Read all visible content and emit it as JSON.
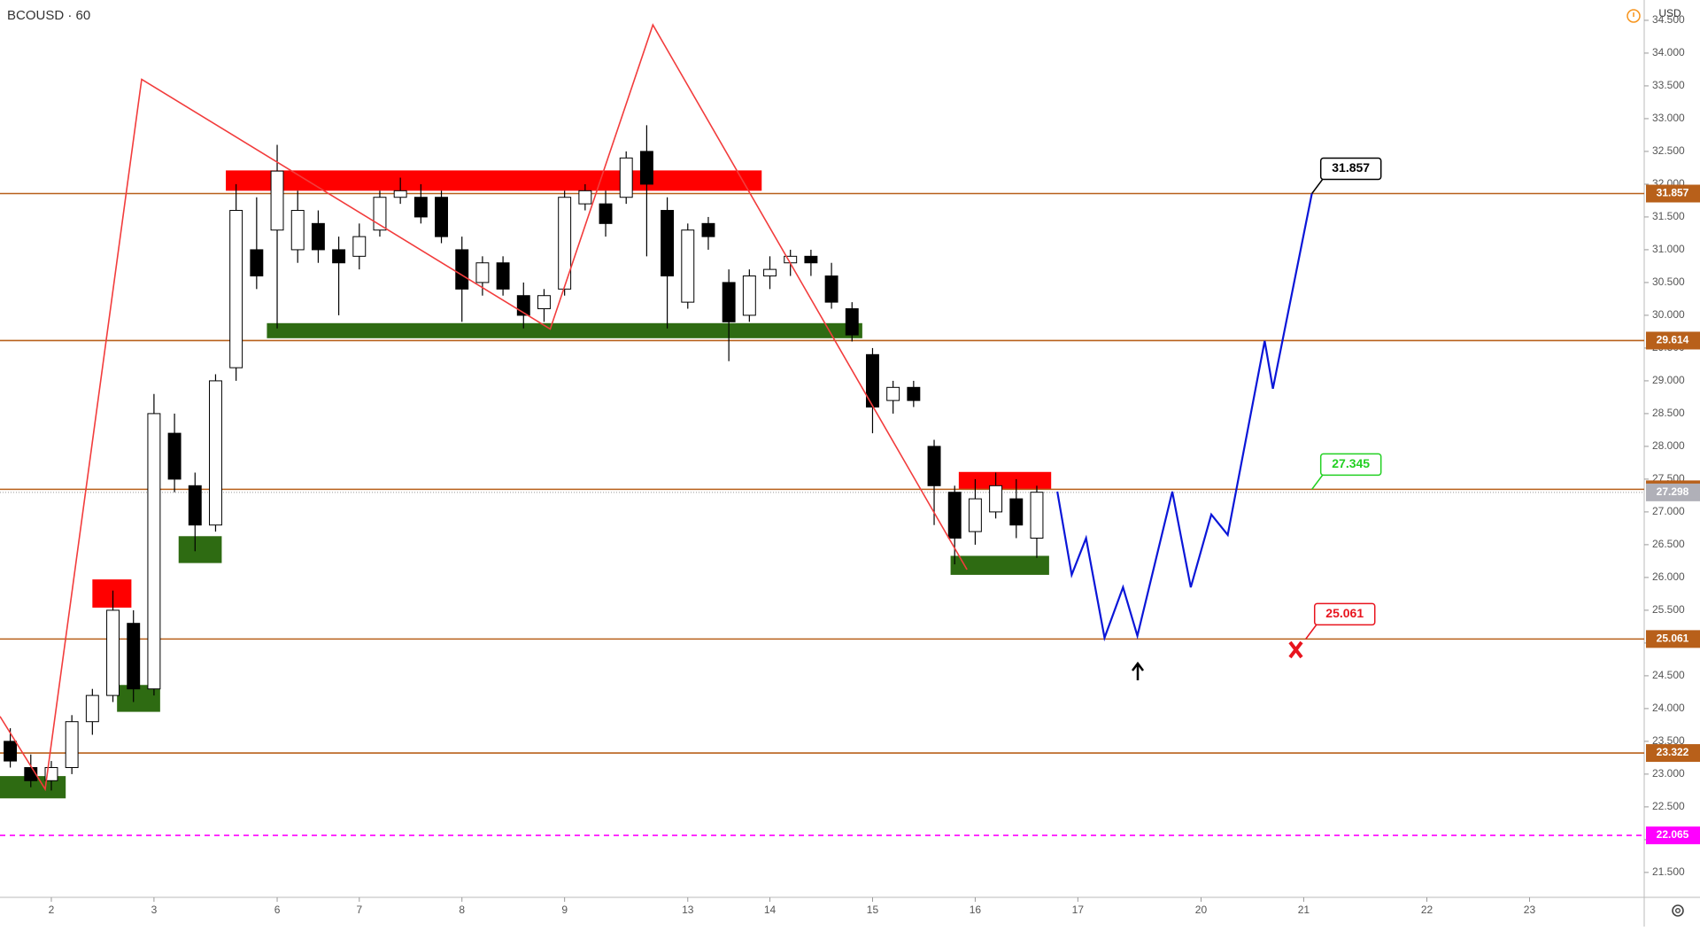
{
  "chart_data": {
    "type": "candlestick",
    "title": "BCOUSD · 60",
    "currency": "USD",
    "categories": [
      null,
      null,
      "2",
      null,
      null,
      null,
      null,
      "3",
      null,
      null,
      null,
      null,
      null,
      "6",
      null,
      null,
      null,
      "7",
      null,
      null,
      null,
      null,
      "8",
      null,
      null,
      null,
      null,
      "9",
      null,
      null,
      null,
      null,
      null,
      "13",
      null,
      null,
      null,
      "14",
      null,
      null,
      null,
      null,
      "15",
      null,
      null,
      null,
      null,
      "16",
      null,
      null,
      null,
      null,
      "17",
      null,
      null,
      null,
      null,
      null,
      "20",
      null,
      null,
      null,
      null,
      "21",
      null,
      null,
      null,
      null,
      null,
      "22",
      null,
      null,
      null,
      null,
      "23",
      null,
      null,
      null,
      null,
      null
    ],
    "open": [
      23.5,
      23.1,
      22.9,
      23.1,
      23.8,
      24.2,
      25.3,
      24.3,
      28.2,
      27.4,
      26.8,
      29.2,
      31.0,
      31.3,
      31.0,
      31.4,
      31.0,
      30.9,
      31.3,
      31.8,
      31.8,
      31.8,
      31.0,
      30.5,
      30.8,
      30.3,
      30.1,
      30.4,
      31.7,
      31.7,
      31.8,
      32.5,
      31.6,
      30.2,
      31.4,
      30.5,
      30.0,
      30.6,
      30.8,
      30.9,
      30.6,
      30.1,
      29.4,
      28.7,
      28.9,
      28.0,
      27.3,
      26.7,
      27.0,
      27.2,
      26.6,
      null,
      null,
      null,
      null,
      null,
      null,
      null,
      null,
      null,
      null,
      null,
      null,
      null,
      null,
      null,
      null,
      null,
      null,
      null,
      null,
      null,
      null,
      null,
      null,
      null,
      null,
      null,
      null,
      null
    ],
    "high": [
      23.7,
      23.3,
      23.2,
      23.9,
      24.3,
      25.8,
      25.5,
      28.8,
      28.5,
      27.6,
      29.1,
      32.0,
      31.8,
      32.6,
      31.9,
      31.6,
      31.2,
      31.4,
      31.9,
      32.1,
      32.0,
      31.9,
      31.2,
      30.9,
      30.9,
      30.5,
      30.4,
      31.9,
      32.0,
      31.9,
      32.5,
      32.9,
      31.8,
      31.4,
      31.5,
      30.7,
      30.7,
      30.9,
      31.0,
      31.0,
      30.8,
      30.2,
      29.5,
      29.0,
      29.0,
      28.1,
      27.4,
      27.5,
      27.6,
      27.5,
      27.4,
      null,
      null,
      null,
      null,
      null,
      null,
      null,
      null,
      null,
      null,
      null,
      null,
      null,
      null,
      null,
      null,
      null,
      null,
      null,
      null,
      null,
      null,
      null,
      null,
      null,
      null,
      null,
      null,
      null
    ],
    "low": [
      23.1,
      22.8,
      22.75,
      23.0,
      23.6,
      24.1,
      24.1,
      24.2,
      27.3,
      26.4,
      26.7,
      29.0,
      30.4,
      29.8,
      30.8,
      30.8,
      30.0,
      30.7,
      31.2,
      31.7,
      31.4,
      31.1,
      29.9,
      30.3,
      30.3,
      29.8,
      29.9,
      30.3,
      31.6,
      31.2,
      31.7,
      30.9,
      29.8,
      30.1,
      31.0,
      29.3,
      29.9,
      30.4,
      30.6,
      30.6,
      30.1,
      29.6,
      28.2,
      28.5,
      28.6,
      26.8,
      26.2,
      26.5,
      26.9,
      26.6,
      26.3,
      null,
      null,
      null,
      null,
      null,
      null,
      null,
      null,
      null,
      null,
      null,
      null,
      null,
      null,
      null,
      null,
      null,
      null,
      null,
      null,
      null,
      null,
      null,
      null,
      null,
      null,
      null,
      null,
      null
    ],
    "close": [
      23.2,
      22.9,
      23.1,
      23.8,
      24.2,
      25.5,
      24.3,
      28.5,
      27.5,
      26.8,
      29.0,
      31.6,
      30.6,
      32.2,
      31.6,
      31.0,
      30.8,
      31.2,
      31.8,
      31.9,
      31.5,
      31.2,
      30.4,
      30.8,
      30.4,
      30.0,
      30.3,
      31.8,
      31.9,
      31.4,
      32.4,
      32.0,
      30.6,
      31.3,
      31.2,
      29.9,
      30.6,
      30.7,
      30.9,
      30.8,
      30.2,
      29.7,
      28.6,
      28.9,
      28.7,
      27.4,
      26.6,
      27.2,
      27.4,
      26.8,
      27.3,
      null,
      null,
      null,
      null,
      null,
      null,
      null,
      null,
      null,
      null,
      null,
      null,
      null,
      null,
      null,
      null,
      null,
      null,
      null,
      null,
      null,
      null,
      null,
      null,
      null,
      null,
      null,
      null,
      null
    ],
    "ylim": [
      21.12,
      34.81
    ],
    "yticks": [
      {
        "value": 21.5,
        "label": "21.500"
      },
      {
        "value": 22,
        "label": "22.000"
      },
      {
        "value": 22.5,
        "label": "22.500"
      },
      {
        "value": 23,
        "label": "23.000"
      },
      {
        "value": 23.5,
        "label": "23.500"
      },
      {
        "value": 24,
        "label": "24.000"
      },
      {
        "value": 24.5,
        "label": "24.500"
      },
      {
        "value": 25,
        "label": "25.000"
      },
      {
        "value": 25.5,
        "label": "25.500"
      },
      {
        "value": 26,
        "label": "26.000"
      },
      {
        "value": 26.5,
        "label": "26.500"
      },
      {
        "value": 27,
        "label": "27.000"
      },
      {
        "value": 27.5,
        "label": "27.500"
      },
      {
        "value": 28,
        "label": "28.000"
      },
      {
        "value": 28.5,
        "label": "28.500"
      },
      {
        "value": 29,
        "label": "29.000"
      },
      {
        "value": 29.5,
        "label": "29.500"
      },
      {
        "value": 30,
        "label": "30.000"
      },
      {
        "value": 30.5,
        "label": "30.500"
      },
      {
        "value": 31,
        "label": "31.000"
      },
      {
        "value": 31.5,
        "label": "31.500"
      },
      {
        "value": 32,
        "label": "32.000"
      },
      {
        "value": 32.5,
        "label": "32.500"
      },
      {
        "value": 33,
        "label": "33.000"
      },
      {
        "value": 33.5,
        "label": "33.500"
      },
      {
        "value": 34,
        "label": "34.000"
      },
      {
        "value": 34.5,
        "label": "34.500"
      }
    ],
    "levels": [
      {
        "value": 31.857,
        "color": "#b8601a"
      },
      {
        "value": 29.614,
        "color": "#b8601a"
      },
      {
        "value": 27.345,
        "color": "#b8601a"
      },
      {
        "value": 25.061,
        "color": "#b8601a"
      },
      {
        "value": 23.322,
        "color": "#b8601a"
      },
      {
        "value": 22.065,
        "color": "#ff00ff",
        "dashed": true
      }
    ],
    "last_price": 27.298,
    "zones": [
      {
        "color": "#ff0000",
        "x0": 10.5,
        "x1": 36.6,
        "top": 32.21,
        "bottom": 31.9
      },
      {
        "color": "#2e6b12",
        "x0": 12.5,
        "x1": 41.5,
        "top": 29.88,
        "bottom": 29.65
      },
      {
        "color": "#ff0000",
        "x0": 4.0,
        "x1": 5.9,
        "top": 25.97,
        "bottom": 25.54
      },
      {
        "color": "#2e6b12",
        "x0": 5.2,
        "x1": 7.3,
        "top": 24.36,
        "bottom": 23.95
      },
      {
        "color": "#2e6b12",
        "x0": 8.2,
        "x1": 10.3,
        "top": 26.63,
        "bottom": 26.22
      },
      {
        "color": "#2e6b12",
        "x0": -0.5,
        "x1": 2.7,
        "top": 22.97,
        "bottom": 22.63
      },
      {
        "color": "#ff0000",
        "x0": 46.2,
        "x1": 50.7,
        "top": 27.61,
        "bottom": 27.34
      },
      {
        "color": "#2e6b12",
        "x0": 45.8,
        "x1": 50.6,
        "top": 26.33,
        "bottom": 26.04
      }
    ],
    "zigzag": {
      "color": "#f23c3c",
      "x": [
        -0.5,
        1.7,
        6.4,
        26.3,
        31.3,
        46.6
      ],
      "y": [
        23.88,
        22.77,
        33.6,
        29.79,
        34.43,
        26.12
      ]
    },
    "projection": {
      "color": "#0a16d8",
      "x": [
        51.0,
        51.7,
        52.4,
        53.3,
        54.2,
        54.9,
        56.6,
        57.5,
        58.5,
        59.3,
        61.1,
        61.5,
        63.4
      ],
      "y": [
        27.31,
        26.04,
        26.6,
        25.08,
        25.85,
        25.11,
        27.31,
        25.85,
        26.96,
        26.65,
        29.61,
        28.88,
        31.86
      ]
    },
    "callouts": [
      {
        "value": 31.857,
        "at": 63.4,
        "color": "#000000"
      },
      {
        "value": 27.345,
        "at": 63.4,
        "color": "#22d022"
      },
      {
        "value": 25.061,
        "at": 63.1,
        "color": "#e8141e"
      }
    ]
  }
}
